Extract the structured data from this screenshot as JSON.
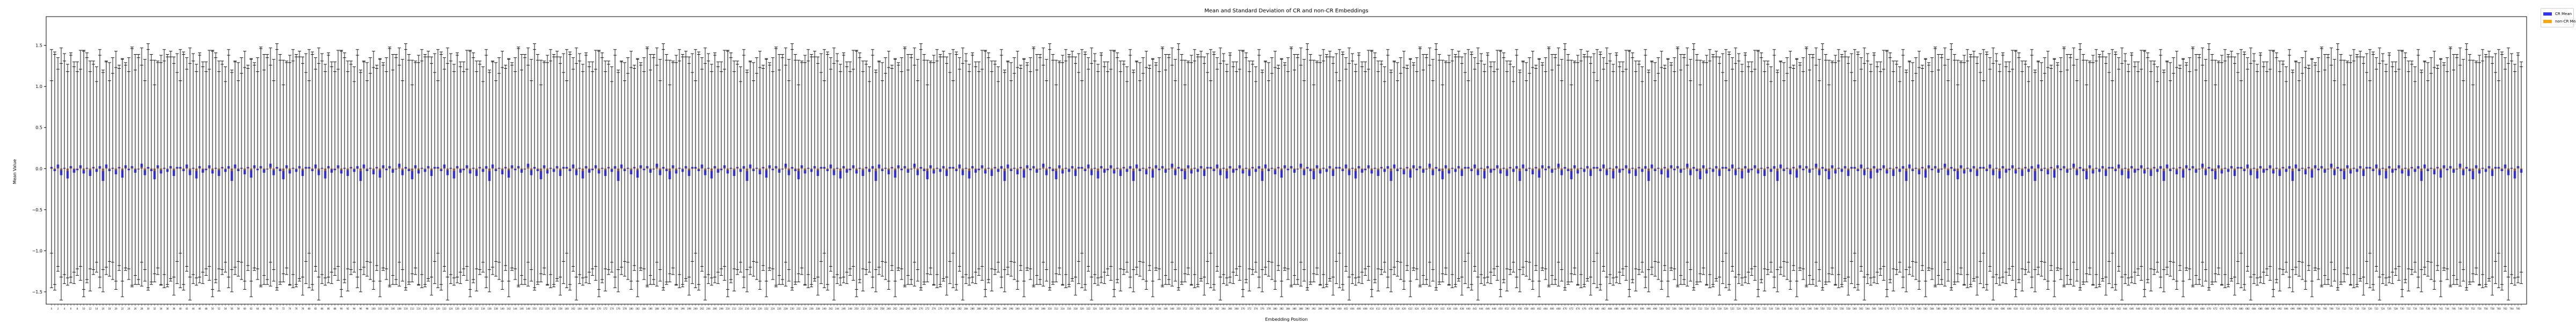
{
  "chart_data": {
    "type": "bar",
    "title": "Mean and Standard Deviation of CR and non-CR Embeddings",
    "xlabel": "Embedding Position",
    "ylabel": "Mean Value",
    "ylim": [
      -1.65,
      1.85
    ],
    "y_ticks": [
      -1.5,
      -1.0,
      -0.5,
      0.0,
      0.5,
      1.0,
      1.5
    ],
    "y_tick_labels": [
      "−1.5",
      "−1.0",
      "−0.5",
      "0.0",
      "0.5",
      "1.0",
      "1.5"
    ],
    "x_range": [
      0,
      767
    ],
    "categories_count": 768,
    "grid": false,
    "legend_position": "top-right",
    "series": [
      {
        "name": "CR Mean",
        "color": "#3333ff",
        "values": [
          0.02,
          -0.03,
          0.05,
          -0.08,
          0.01,
          -0.12,
          0.03,
          -0.05,
          -0.02,
          0.04,
          -0.06,
          0.01,
          -0.09,
          0.02,
          -0.04,
          0.03,
          -0.15,
          0.05,
          -0.03,
          0.01,
          -0.07,
          0.02,
          -0.11,
          0.04,
          -0.02,
          0.03,
          -0.05,
          -0.01,
          0.06,
          -0.08,
          0.02,
          -0.03,
          -0.13,
          0.04,
          -0.06,
          0.01,
          -0.04,
          0.03,
          -0.09,
          0.02
        ],
        "std": [
          1.05,
          1.25,
          1.35,
          1.15,
          1.4,
          1.3,
          1.1,
          1.45,
          1.2,
          1.35,
          1.5,
          1.25,
          1.4,
          1.15,
          1.3,
          1.45,
          1.2,
          1.35,
          1.1,
          1.4,
          1.3,
          1.55,
          1.25,
          1.4,
          1.15,
          1.35,
          1.45,
          1.2,
          1.3,
          1.4,
          1.5,
          1.25,
          1.35,
          1.15,
          1.45,
          1.3,
          1.2,
          1.4,
          1.35,
          1.25
        ]
      },
      {
        "name": "non-CR Mean",
        "color": "#ffa500",
        "values": [
          0.0,
          -0.01,
          0.01,
          -0.02,
          0.0,
          -0.03,
          0.01,
          -0.01,
          0.0,
          0.01,
          -0.02,
          0.0,
          -0.02,
          0.01,
          -0.01,
          0.0,
          -0.03,
          0.01,
          -0.01,
          0.0,
          -0.02,
          0.01,
          -0.02,
          0.01,
          0.0,
          0.01,
          -0.01,
          0.0,
          0.02,
          -0.02,
          0.0,
          -0.01,
          -0.03,
          0.01,
          -0.02,
          0.0,
          -0.01,
          0.01,
          -0.02,
          0.0
        ],
        "std": [
          1.35,
          1.4,
          1.3,
          1.45,
          1.25,
          1.4,
          1.35,
          1.2,
          1.45,
          1.3,
          1.4,
          1.35,
          1.25,
          1.45,
          1.3,
          1.4,
          1.35,
          1.2,
          1.45,
          1.3,
          1.4,
          1.25,
          1.35,
          1.45,
          1.3,
          1.4,
          1.2,
          1.35,
          1.45,
          1.3,
          1.25,
          1.4,
          1.35,
          1.45,
          1.3,
          1.2,
          1.4,
          1.35,
          1.3,
          1.45
        ]
      }
    ]
  }
}
